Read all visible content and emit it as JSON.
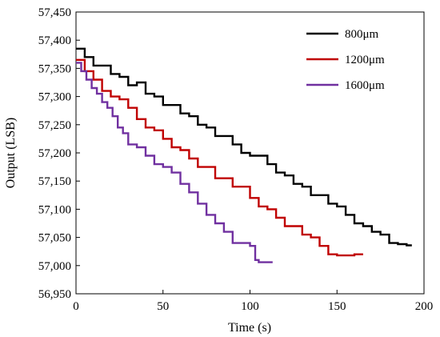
{
  "chart_data": {
    "type": "line",
    "title": "",
    "xlabel": "Time (s)",
    "ylabel": "Output (LSB)",
    "xlim": [
      0,
      200
    ],
    "ylim": [
      56950,
      57450
    ],
    "x_ticks": [
      0,
      50,
      100,
      150,
      200
    ],
    "x_tick_labels": [
      "0",
      "50",
      "100",
      "150",
      "200"
    ],
    "y_ticks": [
      56950,
      57000,
      57050,
      57100,
      57150,
      57200,
      57250,
      57300,
      57350,
      57400,
      57450
    ],
    "y_tick_labels": [
      "56,950",
      "57,000",
      "57,050",
      "57,100",
      "57,150",
      "57,200",
      "57,250",
      "57,300",
      "57,350",
      "57,400",
      "57,450"
    ],
    "grid": false,
    "legend_position": "top-right",
    "series": [
      {
        "name": "800μm",
        "color": "#000000",
        "x": [
          0,
          5,
          5,
          10,
          10,
          20,
          20,
          25,
          25,
          30,
          30,
          35,
          35,
          40,
          40,
          45,
          45,
          50,
          50,
          55,
          55,
          60,
          60,
          65,
          65,
          70,
          70,
          75,
          75,
          80,
          80,
          90,
          90,
          95,
          95,
          100,
          100,
          110,
          110,
          115,
          115,
          120,
          120,
          125,
          125,
          130,
          130,
          135,
          135,
          145,
          145,
          150,
          150,
          155,
          155,
          160,
          160,
          165,
          165,
          170,
          170,
          175,
          175,
          180,
          180,
          185,
          185,
          190,
          190,
          193
        ],
        "y": [
          57385,
          57385,
          57370,
          57370,
          57355,
          57355,
          57340,
          57340,
          57335,
          57335,
          57320,
          57320,
          57325,
          57325,
          57305,
          57305,
          57300,
          57300,
          57285,
          57285,
          57285,
          57285,
          57270,
          57270,
          57265,
          57265,
          57250,
          57250,
          57245,
          57245,
          57230,
          57230,
          57215,
          57215,
          57200,
          57200,
          57195,
          57195,
          57180,
          57180,
          57165,
          57165,
          57160,
          57160,
          57145,
          57145,
          57140,
          57140,
          57125,
          57125,
          57110,
          57110,
          57105,
          57105,
          57090,
          57090,
          57075,
          57075,
          57070,
          57070,
          57060,
          57060,
          57055,
          57055,
          57040,
          57040,
          57038,
          57038,
          57036,
          57036
        ]
      },
      {
        "name": "1200μm",
        "color": "#c00000",
        "x": [
          0,
          5,
          5,
          10,
          10,
          15,
          15,
          20,
          20,
          25,
          25,
          30,
          30,
          35,
          35,
          40,
          40,
          45,
          45,
          50,
          50,
          55,
          55,
          60,
          60,
          65,
          65,
          70,
          70,
          80,
          80,
          90,
          90,
          100,
          100,
          105,
          105,
          110,
          110,
          115,
          115,
          120,
          120,
          130,
          130,
          135,
          135,
          140,
          140,
          145,
          145,
          150,
          150,
          160,
          160,
          165
        ],
        "y": [
          57365,
          57365,
          57345,
          57345,
          57330,
          57330,
          57310,
          57310,
          57300,
          57300,
          57295,
          57295,
          57280,
          57280,
          57260,
          57260,
          57245,
          57245,
          57240,
          57240,
          57225,
          57225,
          57210,
          57210,
          57205,
          57205,
          57190,
          57190,
          57175,
          57175,
          57155,
          57155,
          57140,
          57140,
          57120,
          57120,
          57105,
          57105,
          57100,
          57100,
          57085,
          57085,
          57070,
          57070,
          57055,
          57055,
          57050,
          57050,
          57035,
          57035,
          57020,
          57020,
          57018,
          57018,
          57020,
          57020
        ]
      },
      {
        "name": "1600μm",
        "color": "#7030a0",
        "x": [
          0,
          3,
          3,
          6,
          6,
          9,
          9,
          12,
          12,
          15,
          15,
          18,
          18,
          21,
          21,
          24,
          24,
          27,
          27,
          30,
          30,
          35,
          35,
          40,
          40,
          45,
          45,
          50,
          50,
          55,
          55,
          60,
          60,
          65,
          65,
          70,
          70,
          75,
          75,
          80,
          80,
          85,
          85,
          90,
          90,
          100,
          100,
          103,
          103,
          105,
          105,
          113
        ],
        "y": [
          57360,
          57360,
          57345,
          57345,
          57330,
          57330,
          57315,
          57315,
          57305,
          57305,
          57290,
          57290,
          57280,
          57280,
          57265,
          57265,
          57245,
          57245,
          57235,
          57235,
          57215,
          57215,
          57210,
          57210,
          57195,
          57195,
          57180,
          57180,
          57175,
          57175,
          57165,
          57165,
          57145,
          57145,
          57130,
          57130,
          57110,
          57110,
          57090,
          57090,
          57075,
          57075,
          57060,
          57060,
          57040,
          57040,
          57035,
          57035,
          57010,
          57010,
          57006,
          57006
        ]
      }
    ]
  }
}
